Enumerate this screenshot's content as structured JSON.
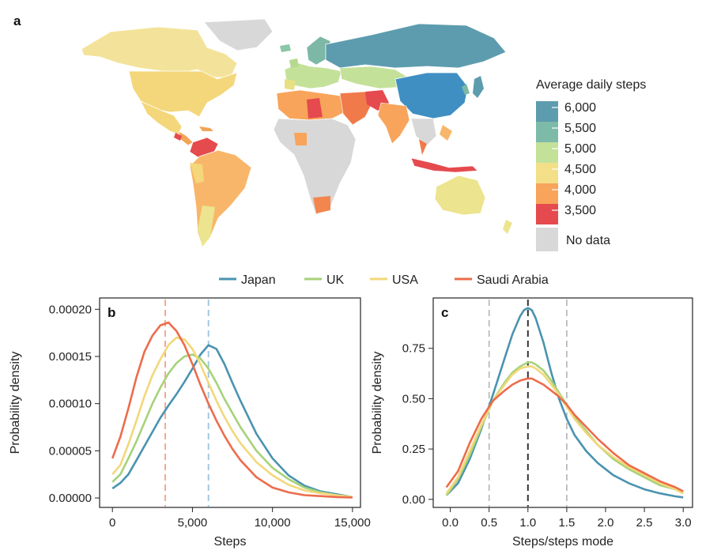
{
  "colors": {
    "Japan": "#4a93b0",
    "UK": "#a6d279",
    "USA": "#f3d77a",
    "Saudi Arabia": "#ec6c4b",
    "no_data": "#d8d8d8",
    "mode_line_japan": "#9bc3dc",
    "mode_line_saudi": "#f2a085"
  },
  "panel_a": {
    "letter": "a",
    "legend_title": "Average daily steps",
    "scale": [
      {
        "label": "6,000",
        "color": "#5d9cae"
      },
      {
        "label": "5,500",
        "color": "#7dbaa8"
      },
      {
        "label": "5,000",
        "color": "#c4e19a"
      },
      {
        "label": "4,500",
        "color": "#f3df88"
      },
      {
        "label": "4,000",
        "color": "#f8a45a"
      },
      {
        "label": "3,500",
        "color": "#e54a4e"
      }
    ],
    "no_data_label": "No data",
    "icon": "world-map-icon"
  },
  "series_legend": [
    "Japan",
    "UK",
    "USA",
    "Saudi Arabia"
  ],
  "chart_data": [
    {
      "type": "line",
      "panel": "b",
      "xlabel": "Steps",
      "ylabel": "Probability density",
      "xlim": [
        -800,
        15500
      ],
      "ylim": [
        -1e-05,
        0.000212
      ],
      "xticks": [
        0,
        5000,
        10000,
        15000
      ],
      "xtick_labels": [
        "0",
        "5,000",
        "10,000",
        "15,000"
      ],
      "yticks": [
        0,
        5e-05,
        0.0001,
        0.00015,
        0.0002
      ],
      "ytick_labels": [
        "0.00000",
        "0.00005",
        "0.00010",
        "0.00015",
        "0.00020"
      ],
      "vlines": [
        {
          "x": 3300,
          "series": "Saudi Arabia"
        },
        {
          "x": 6000,
          "series": "Japan"
        }
      ],
      "series": [
        {
          "name": "Japan",
          "x": [
            0,
            500,
            1000,
            1500,
            2000,
            2500,
            3000,
            3500,
            4000,
            4500,
            5000,
            5500,
            6000,
            6500,
            7000,
            7500,
            8000,
            9000,
            10000,
            11000,
            12000,
            13000,
            14000,
            15000
          ],
          "y": [
            1e-05,
            1.6e-05,
            2.5e-05,
            4e-05,
            5.5e-05,
            7e-05,
            8.5e-05,
            9.8e-05,
            0.00011,
            0.000123,
            0.000137,
            0.000152,
            0.000162,
            0.000158,
            0.000142,
            0.000122,
            0.000103,
            6.8e-05,
            4.2e-05,
            2.4e-05,
            1.3e-05,
            7e-06,
            4e-06,
            1e-06
          ]
        },
        {
          "name": "UK",
          "x": [
            0,
            500,
            1000,
            1500,
            2000,
            2500,
            3000,
            3500,
            4000,
            4500,
            5000,
            5500,
            6000,
            6500,
            7000,
            7500,
            8000,
            9000,
            10000,
            11000,
            12000,
            13000,
            14000,
            15000
          ],
          "y": [
            1.7e-05,
            2.5e-05,
            4.2e-05,
            6e-05,
            8e-05,
            0.0001,
            0.000117,
            0.000132,
            0.000143,
            0.00015,
            0.000152,
            0.000148,
            0.000137,
            0.000122,
            0.000105,
            9e-05,
            7.5e-05,
            5e-05,
            3.2e-05,
            2e-05,
            1.1e-05,
            6e-06,
            3e-06,
            1e-06
          ]
        },
        {
          "name": "USA",
          "x": [
            0,
            500,
            1000,
            1500,
            2000,
            2500,
            3000,
            3500,
            4000,
            4500,
            5000,
            5500,
            6000,
            6500,
            7000,
            7500,
            8000,
            9000,
            10000,
            11000,
            12000,
            13000,
            14000,
            15000
          ],
          "y": [
            2.5e-05,
            3.5e-05,
            5.7e-05,
            8.2e-05,
            0.000108,
            0.00013,
            0.000147,
            0.000162,
            0.00017,
            0.000168,
            0.000158,
            0.000142,
            0.000122,
            0.000103,
            8.6e-05,
            7.1e-05,
            5.8e-05,
            3.8e-05,
            2.4e-05,
            1.4e-05,
            8e-06,
            5e-06,
            3e-06,
            1e-06
          ]
        },
        {
          "name": "Saudi Arabia",
          "x": [
            0,
            500,
            1000,
            1500,
            2000,
            2500,
            3000,
            3500,
            4000,
            4500,
            5000,
            5500,
            6000,
            6500,
            7000,
            7500,
            8000,
            9000,
            10000,
            11000,
            12000,
            13000,
            14000,
            15000
          ],
          "y": [
            4.2e-05,
            6.5e-05,
            9.5e-05,
            0.000128,
            0.000155,
            0.000172,
            0.000183,
            0.000186,
            0.000177,
            0.000162,
            0.000142,
            0.00012,
            0.0001,
            8.2e-05,
            6.6e-05,
            5.2e-05,
            4e-05,
            2.2e-05,
            1.1e-05,
            6e-06,
            3e-06,
            2e-06,
            1e-06,
            5e-07
          ]
        }
      ]
    },
    {
      "type": "line",
      "panel": "c",
      "xlabel": "Steps/steps mode",
      "ylabel": "Probability density",
      "xlim": [
        -0.22,
        3.12
      ],
      "ylim": [
        -0.04,
        1.0
      ],
      "xticks": [
        0,
        0.5,
        1,
        1.5,
        2,
        2.5,
        3
      ],
      "xtick_labels": [
        "0.0",
        "0.5",
        "1.0",
        "1.5",
        "2.0",
        "2.5",
        "3.0"
      ],
      "yticks": [
        0,
        0.25,
        0.5,
        0.75
      ],
      "ytick_labels": [
        "0.00",
        "0.25",
        "0.50",
        "0.75"
      ],
      "vlines": [
        {
          "x": 0.5,
          "style": "light"
        },
        {
          "x": 1.0,
          "style": "dark"
        },
        {
          "x": 1.5,
          "style": "light"
        }
      ],
      "series": [
        {
          "name": "Japan",
          "x": [
            -0.05,
            0.1,
            0.25,
            0.4,
            0.55,
            0.7,
            0.8,
            0.9,
            0.95,
            1.0,
            1.05,
            1.1,
            1.2,
            1.3,
            1.4,
            1.5,
            1.6,
            1.75,
            1.9,
            2.1,
            2.3,
            2.5,
            2.7,
            2.9,
            3.0
          ],
          "y": [
            0.02,
            0.08,
            0.2,
            0.35,
            0.52,
            0.7,
            0.82,
            0.91,
            0.94,
            0.95,
            0.94,
            0.9,
            0.78,
            0.63,
            0.5,
            0.4,
            0.32,
            0.24,
            0.18,
            0.12,
            0.08,
            0.05,
            0.03,
            0.015,
            0.01
          ]
        },
        {
          "name": "UK",
          "x": [
            -0.05,
            0.1,
            0.25,
            0.4,
            0.55,
            0.7,
            0.8,
            0.9,
            1.0,
            1.05,
            1.1,
            1.2,
            1.3,
            1.4,
            1.5,
            1.6,
            1.75,
            1.9,
            2.1,
            2.3,
            2.5,
            2.7,
            2.9,
            3.0
          ],
          "y": [
            0.02,
            0.1,
            0.22,
            0.36,
            0.49,
            0.58,
            0.63,
            0.66,
            0.68,
            0.68,
            0.67,
            0.64,
            0.59,
            0.53,
            0.47,
            0.41,
            0.34,
            0.27,
            0.2,
            0.15,
            0.11,
            0.07,
            0.05,
            0.03
          ]
        },
        {
          "name": "USA",
          "x": [
            -0.05,
            0.1,
            0.25,
            0.4,
            0.55,
            0.7,
            0.8,
            0.9,
            1.0,
            1.05,
            1.1,
            1.2,
            1.3,
            1.4,
            1.5,
            1.6,
            1.75,
            1.9,
            2.1,
            2.3,
            2.5,
            2.7,
            2.9,
            3.0
          ],
          "y": [
            0.03,
            0.11,
            0.24,
            0.37,
            0.49,
            0.57,
            0.62,
            0.65,
            0.66,
            0.66,
            0.65,
            0.62,
            0.57,
            0.52,
            0.46,
            0.4,
            0.33,
            0.27,
            0.21,
            0.16,
            0.12,
            0.08,
            0.05,
            0.03
          ]
        },
        {
          "name": "Saudi Arabia",
          "x": [
            -0.05,
            0.1,
            0.25,
            0.4,
            0.55,
            0.7,
            0.8,
            0.9,
            1.0,
            1.05,
            1.1,
            1.2,
            1.3,
            1.4,
            1.5,
            1.6,
            1.75,
            1.9,
            2.1,
            2.3,
            2.5,
            2.7,
            2.9,
            3.0
          ],
          "y": [
            0.06,
            0.14,
            0.28,
            0.4,
            0.49,
            0.54,
            0.57,
            0.59,
            0.6,
            0.6,
            0.59,
            0.57,
            0.54,
            0.51,
            0.47,
            0.42,
            0.36,
            0.3,
            0.23,
            0.17,
            0.13,
            0.09,
            0.06,
            0.04
          ]
        }
      ]
    }
  ]
}
